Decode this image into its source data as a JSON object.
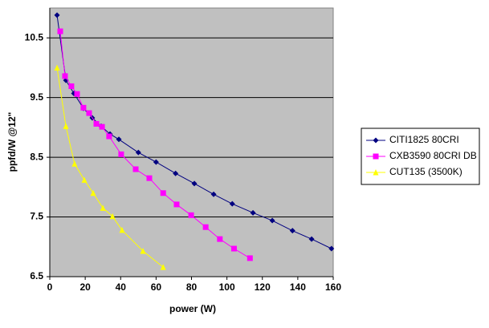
{
  "chart_data": {
    "type": "line",
    "xlabel": "power (W)",
    "ylabel": "ppfd/W @12\"",
    "xlim": [
      0,
      160
    ],
    "xticks": [
      0,
      20,
      40,
      60,
      80,
      100,
      120,
      140,
      160
    ],
    "ylim": [
      6.5,
      11
    ],
    "yticks": [
      6.5,
      7.5,
      8.5,
      9.5,
      10.5
    ],
    "grid": true,
    "legend": "right",
    "series": [
      {
        "name": "CITI1825 80CRI",
        "color": "#000080",
        "marker": "diamond",
        "x": [
          4.1,
          9.1,
          13.6,
          19,
          24,
          29,
          34,
          39,
          50,
          60,
          71,
          81.6,
          92.5,
          103,
          114.7,
          125.6,
          137,
          147.8,
          159
        ],
        "values": [
          10.88,
          9.79,
          9.57,
          9.32,
          9.16,
          9.02,
          8.89,
          8.8,
          8.58,
          8.42,
          8.23,
          8.06,
          7.88,
          7.72,
          7.57,
          7.44,
          7.27,
          7.13,
          6.97
        ]
      },
      {
        "name": "CXB3590 80CRI DB",
        "color": "#ff00ff",
        "marker": "square",
        "x": [
          5.9,
          8.6,
          12.2,
          15.4,
          19,
          22.2,
          26.3,
          29.5,
          33.5,
          40.3,
          48.5,
          56.2,
          64,
          71.6,
          79.8,
          88,
          96,
          104,
          113
        ],
        "values": [
          10.61,
          9.86,
          9.69,
          9.56,
          9.33,
          9.24,
          9.06,
          9.01,
          8.85,
          8.55,
          8.3,
          8.15,
          7.9,
          7.71,
          7.53,
          7.33,
          7.13,
          6.97,
          6.81
        ]
      },
      {
        "name": "CUT135 (3500K)",
        "color": "#ffff00",
        "marker": "triangle",
        "x": [
          4.1,
          9.1,
          14,
          19.5,
          24.5,
          30,
          35.4,
          40.8,
          52.6,
          64
        ],
        "values": [
          10.0,
          9.02,
          8.39,
          8.12,
          7.9,
          7.65,
          7.51,
          7.28,
          6.93,
          6.66
        ]
      }
    ]
  }
}
